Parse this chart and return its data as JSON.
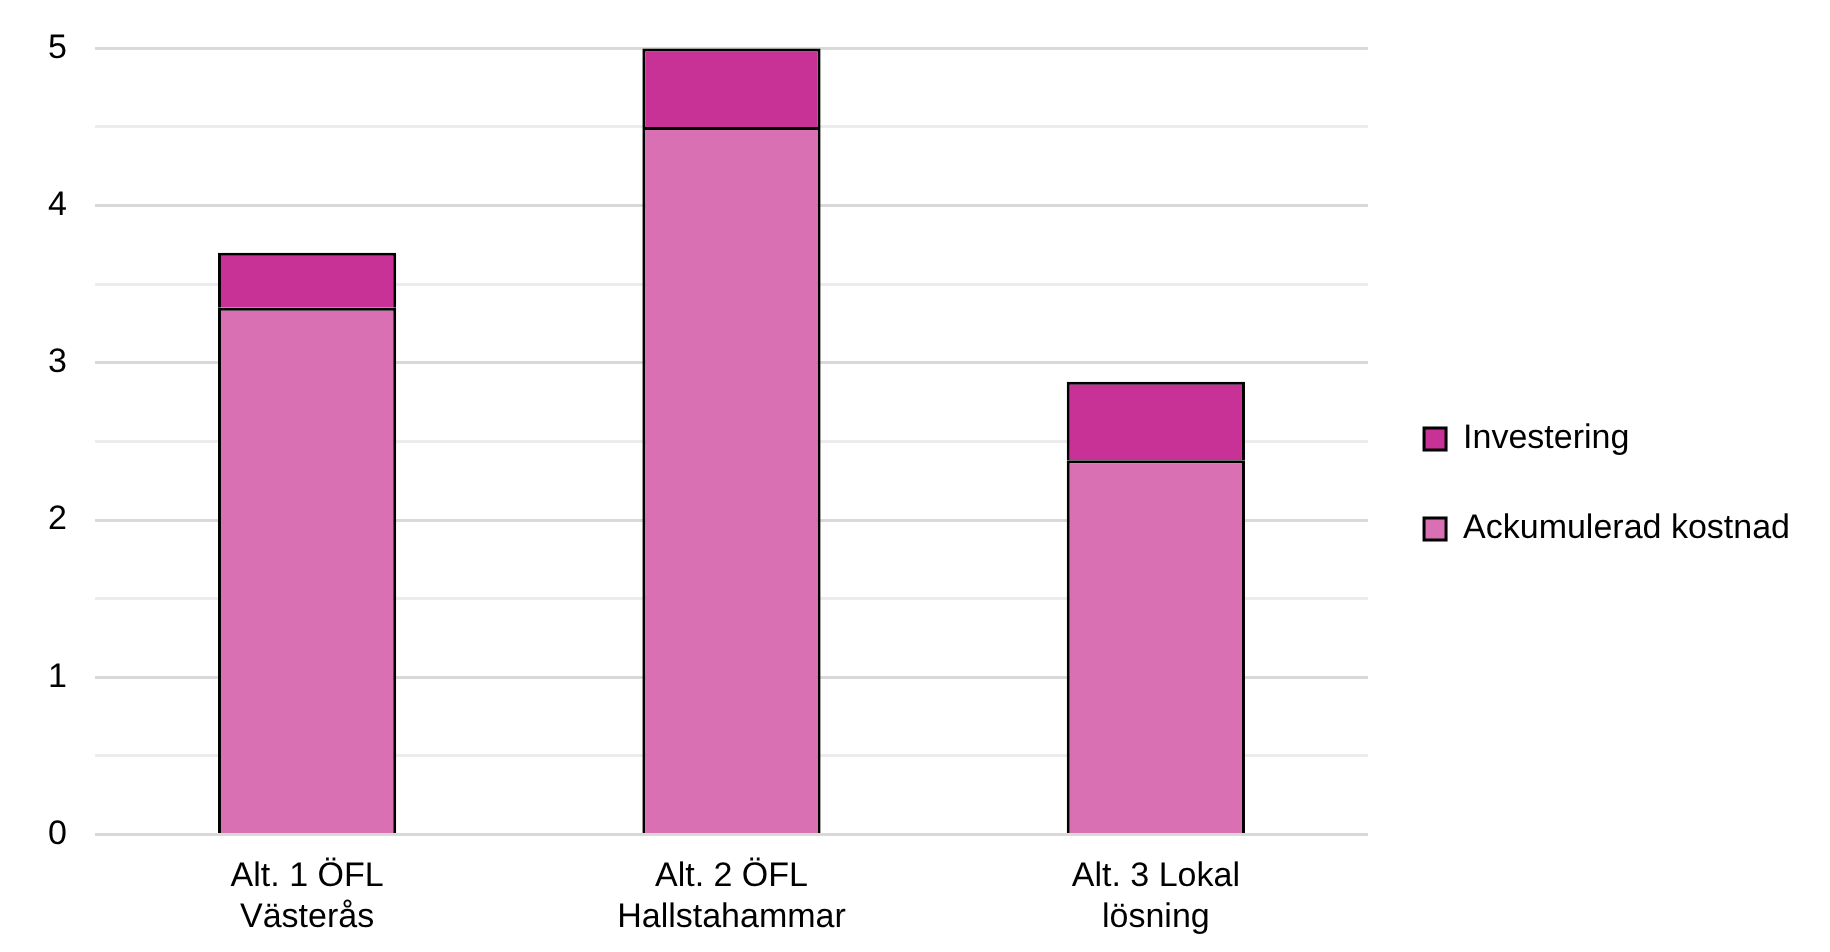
{
  "chart_data": {
    "type": "bar",
    "stacked": true,
    "categories": [
      "Alt. 1 ÖFL Västerås",
      "Alt. 2 ÖFL Hallstahammar",
      "Alt. 3 Lokal lösning"
    ],
    "series": [
      {
        "name": "Ackumulerad kostnad",
        "color": "#d970b4",
        "values": [
          3.35,
          4.5,
          2.38
        ]
      },
      {
        "name": "Investering",
        "color": "#c83296",
        "values": [
          0.35,
          0.5,
          0.5
        ]
      }
    ],
    "ylim": [
      0,
      5
    ],
    "yticks": [
      0,
      {
        "value": 0.5,
        "label": null
      },
      1,
      {
        "value": 1.5,
        "label": null
      },
      2,
      {
        "value": 2.5,
        "label": null
      },
      3,
      {
        "value": 3.5,
        "label": null
      },
      4,
      {
        "value": 4.5,
        "label": null
      },
      5
    ],
    "grid": "y",
    "legend": "right"
  }
}
